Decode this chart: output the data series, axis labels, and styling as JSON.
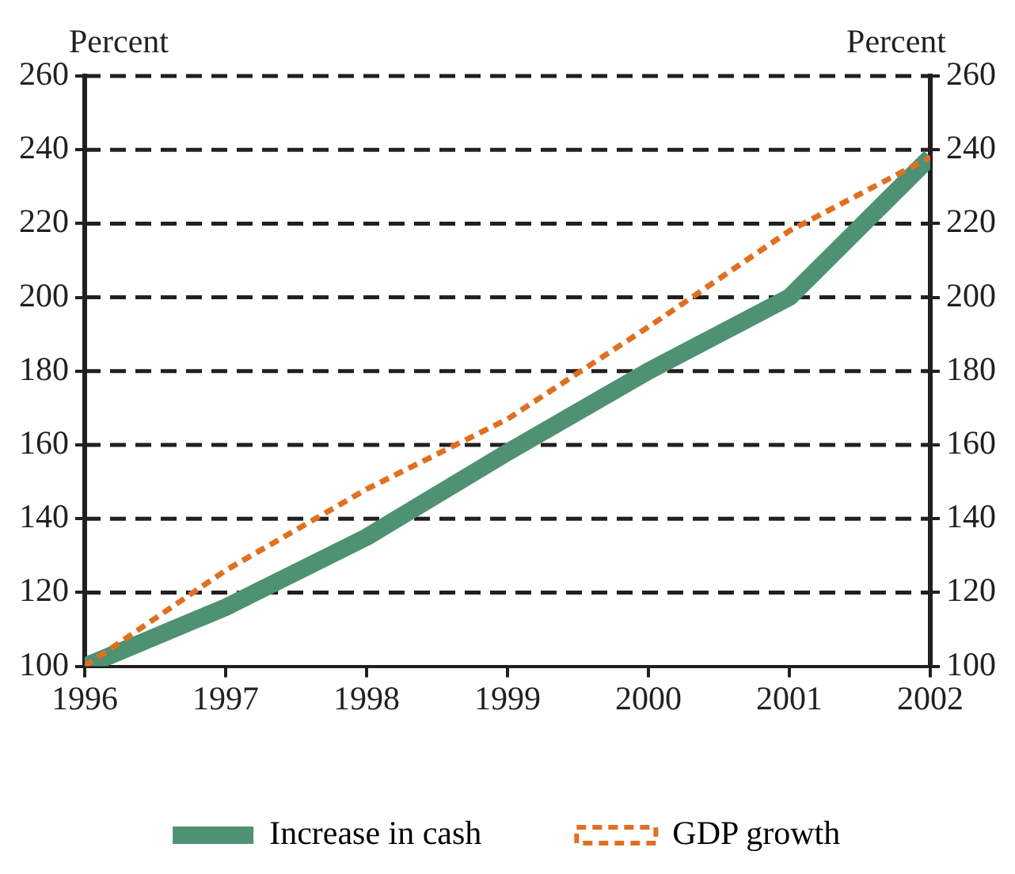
{
  "chart_data": {
    "type": "line",
    "ylabel": "Percent",
    "y2label": "Percent",
    "x": [
      1996,
      1997,
      1998,
      1999,
      2000,
      2001,
      2002
    ],
    "xlim": [
      1996,
      2002
    ],
    "xticks": [
      1996,
      1997,
      1998,
      1999,
      2000,
      2001,
      2002
    ],
    "ylim": [
      100,
      260
    ],
    "yticks": [
      100,
      120,
      140,
      160,
      180,
      200,
      220,
      240,
      260
    ],
    "y2lim": [
      100,
      260
    ],
    "y2ticks": [
      100,
      120,
      140,
      160,
      180,
      200,
      220,
      240,
      260
    ],
    "series": [
      {
        "name": "Increase in cash",
        "color": "#4e9173",
        "line_style": "solid",
        "values": [
          100,
          116,
          135,
          158,
          180,
          200,
          238
        ]
      },
      {
        "name": "GDP growth",
        "color": "#e07020",
        "line_style": "dashed",
        "values": [
          100,
          126,
          148,
          167,
          192,
          218,
          238
        ]
      }
    ],
    "grid": "y",
    "legend": "bottom",
    "marker": "none"
  }
}
